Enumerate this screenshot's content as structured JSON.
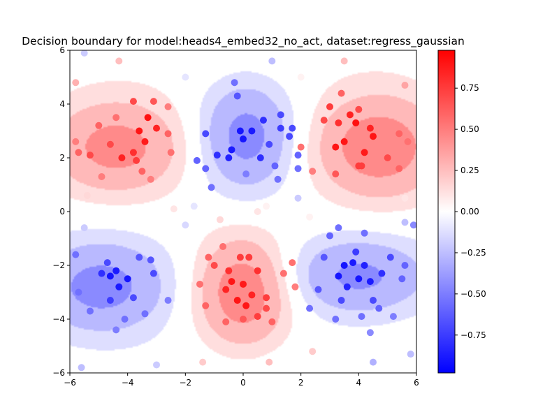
{
  "chart_data": {
    "type": "heatmap",
    "title": "Decision boundary for model:heads4_embed32_no_act, dataset:regress_gaussian",
    "xlabel": "",
    "ylabel": "",
    "xlim": [
      -6,
      6
    ],
    "ylim": [
      -6,
      6
    ],
    "x_ticks": [
      "−6",
      "−4",
      "−2",
      "0",
      "2",
      "4",
      "6"
    ],
    "y_ticks": [
      "−6",
      "−4",
      "−2",
      "0",
      "2",
      "4",
      "6"
    ],
    "x_tick_values": [
      -6,
      -4,
      -2,
      0,
      2,
      4,
      6
    ],
    "y_tick_values": [
      -6,
      -4,
      -2,
      0,
      2,
      4,
      6
    ],
    "grid": false,
    "colormap": "bwr",
    "colors": {
      "negative": "#0000ff",
      "zero": "#ffffff",
      "positive": "#ff0000"
    },
    "colorbar": {
      "range": [
        -0.98,
        0.98
      ],
      "ticks": [
        "−0.75",
        "−0.50",
        "−0.25",
        "0.00",
        "0.25",
        "0.50",
        "0.75"
      ],
      "tick_values": [
        -0.75,
        -0.5,
        -0.25,
        0.0,
        0.25,
        0.5,
        0.75
      ]
    },
    "contour_levels": [
      -0.75,
      -0.5,
      -0.25,
      -0.1,
      0.1,
      0.25,
      0.5,
      0.75
    ],
    "surface_description": "Approximately a sign pattern with alternating positive (red) and negative (blue) lobes: positive near (-4.3,2.3), (4.5,2.3), (0,-3); negative near (0,2.9), (-4.5,-2.6), (4,-2.5).",
    "points": [
      {
        "x": -4.2,
        "y": 2.0,
        "v": 0.85
      },
      {
        "x": -3.6,
        "y": 3.0,
        "v": 0.9
      },
      {
        "x": -3.3,
        "y": 3.5,
        "v": 0.92
      },
      {
        "x": -3.0,
        "y": 3.1,
        "v": 0.85
      },
      {
        "x": -3.4,
        "y": 2.6,
        "v": 0.88
      },
      {
        "x": -3.8,
        "y": 2.2,
        "v": 0.8
      },
      {
        "x": -4.6,
        "y": 2.5,
        "v": 0.7
      },
      {
        "x": -5.0,
        "y": 3.2,
        "v": 0.6
      },
      {
        "x": -5.3,
        "y": 2.1,
        "v": 0.7
      },
      {
        "x": -5.7,
        "y": 2.2,
        "v": 0.6
      },
      {
        "x": -4.9,
        "y": 1.3,
        "v": 0.5
      },
      {
        "x": -3.5,
        "y": 1.5,
        "v": 0.6
      },
      {
        "x": -3.2,
        "y": 1.2,
        "v": 0.5
      },
      {
        "x": -2.6,
        "y": 2.9,
        "v": 0.6
      },
      {
        "x": -2.5,
        "y": 2.2,
        "v": 0.55
      },
      {
        "x": -3.8,
        "y": 4.1,
        "v": 0.7
      },
      {
        "x": -3.1,
        "y": 4.1,
        "v": 0.65
      },
      {
        "x": -2.6,
        "y": 3.9,
        "v": 0.5
      },
      {
        "x": -4.4,
        "y": 3.5,
        "v": 0.55
      },
      {
        "x": -5.8,
        "y": 2.6,
        "v": 0.5
      },
      {
        "x": -3.7,
        "y": 1.9,
        "v": 0.75
      },
      {
        "x": 3.2,
        "y": 2.4,
        "v": 0.9
      },
      {
        "x": 3.5,
        "y": 2.6,
        "v": 0.9
      },
      {
        "x": 3.9,
        "y": 3.3,
        "v": 0.92
      },
      {
        "x": 4.2,
        "y": 2.2,
        "v": 0.88
      },
      {
        "x": 4.5,
        "y": 2.8,
        "v": 0.9
      },
      {
        "x": 3.7,
        "y": 3.6,
        "v": 0.85
      },
      {
        "x": 3.3,
        "y": 3.3,
        "v": 0.8
      },
      {
        "x": 3.0,
        "y": 3.9,
        "v": 0.75
      },
      {
        "x": 2.8,
        "y": 3.4,
        "v": 0.7
      },
      {
        "x": 4.0,
        "y": 1.7,
        "v": 0.75
      },
      {
        "x": 4.1,
        "y": 1.7,
        "v": 0.75
      },
      {
        "x": 5.4,
        "y": 2.9,
        "v": 0.6
      },
      {
        "x": 5.7,
        "y": 2.6,
        "v": 0.55
      },
      {
        "x": 3.4,
        "y": 4.4,
        "v": 0.6
      },
      {
        "x": 4.0,
        "y": 3.8,
        "v": 0.7
      },
      {
        "x": 2.4,
        "y": 1.5,
        "v": 0.5
      },
      {
        "x": 2.0,
        "y": 2.4,
        "v": 0.55
      },
      {
        "x": 5.0,
        "y": 2.0,
        "v": 0.7
      },
      {
        "x": 5.4,
        "y": 1.6,
        "v": 0.6
      },
      {
        "x": 4.4,
        "y": 3.1,
        "v": 0.85
      },
      {
        "x": 3.2,
        "y": 1.4,
        "v": 0.65
      },
      {
        "x": -0.6,
        "y": -2.9,
        "v": 0.85
      },
      {
        "x": -0.4,
        "y": -2.6,
        "v": 0.9
      },
      {
        "x": 0.0,
        "y": -2.7,
        "v": 0.88
      },
      {
        "x": -0.2,
        "y": -3.3,
        "v": 0.9
      },
      {
        "x": 0.3,
        "y": -3.1,
        "v": 0.85
      },
      {
        "x": 0.1,
        "y": -3.5,
        "v": 0.9
      },
      {
        "x": 0.5,
        "y": -2.2,
        "v": 0.8
      },
      {
        "x": -0.1,
        "y": -1.7,
        "v": 0.75
      },
      {
        "x": 0.2,
        "y": -1.7,
        "v": 0.75
      },
      {
        "x": -0.5,
        "y": -2.2,
        "v": 0.8
      },
      {
        "x": 0.8,
        "y": -3.2,
        "v": 0.75
      },
      {
        "x": 0.8,
        "y": -3.6,
        "v": 0.7
      },
      {
        "x": -1.2,
        "y": -1.7,
        "v": 0.6
      },
      {
        "x": -1.3,
        "y": -3.5,
        "v": 0.6
      },
      {
        "x": 1.4,
        "y": -2.3,
        "v": 0.55
      },
      {
        "x": 1.7,
        "y": -1.9,
        "v": 0.55
      },
      {
        "x": 0.0,
        "y": -4.0,
        "v": 0.65
      },
      {
        "x": -0.6,
        "y": -4.1,
        "v": 0.6
      },
      {
        "x": 1.0,
        "y": -4.1,
        "v": 0.6
      },
      {
        "x": -1.0,
        "y": -2.0,
        "v": 0.7
      },
      {
        "x": -0.7,
        "y": -1.3,
        "v": 0.55
      },
      {
        "x": 1.8,
        "y": -2.8,
        "v": 0.5
      },
      {
        "x": -1.5,
        "y": -2.7,
        "v": 0.55
      },
      {
        "x": 0.5,
        "y": -3.9,
        "v": 0.75
      },
      {
        "x": -0.1,
        "y": 3.0,
        "v": -0.9
      },
      {
        "x": -0.4,
        "y": 2.3,
        "v": -0.88
      },
      {
        "x": -0.5,
        "y": 2.0,
        "v": -0.85
      },
      {
        "x": -0.9,
        "y": 2.1,
        "v": -0.8
      },
      {
        "x": 0.3,
        "y": 3.0,
        "v": -0.88
      },
      {
        "x": 0.0,
        "y": 2.7,
        "v": -0.9
      },
      {
        "x": 0.7,
        "y": 3.4,
        "v": -0.8
      },
      {
        "x": 0.6,
        "y": 2.0,
        "v": -0.8
      },
      {
        "x": 1.3,
        "y": 3.1,
        "v": -0.75
      },
      {
        "x": 1.7,
        "y": 3.1,
        "v": -0.7
      },
      {
        "x": 1.6,
        "y": 2.8,
        "v": -0.7
      },
      {
        "x": -1.3,
        "y": 2.9,
        "v": -0.7
      },
      {
        "x": -1.6,
        "y": 1.9,
        "v": -0.6
      },
      {
        "x": 1.1,
        "y": 1.7,
        "v": -0.6
      },
      {
        "x": 1.2,
        "y": 1.2,
        "v": -0.55
      },
      {
        "x": 1.9,
        "y": 1.6,
        "v": -0.55
      },
      {
        "x": -0.2,
        "y": 4.3,
        "v": -0.65
      },
      {
        "x": 1.3,
        "y": 3.6,
        "v": -0.7
      },
      {
        "x": -1.3,
        "y": 1.6,
        "v": -0.6
      },
      {
        "x": 0.9,
        "y": 2.5,
        "v": -0.7
      },
      {
        "x": -1.1,
        "y": 0.9,
        "v": -0.55
      },
      {
        "x": 1.9,
        "y": 2.1,
        "v": -0.6
      },
      {
        "x": 0.1,
        "y": 1.4,
        "v": -0.5
      },
      {
        "x": -0.3,
        "y": 4.8,
        "v": -0.55
      },
      {
        "x": -4.6,
        "y": -2.4,
        "v": -0.9
      },
      {
        "x": -4.4,
        "y": -2.2,
        "v": -0.88
      },
      {
        "x": -4.0,
        "y": -2.5,
        "v": -0.9
      },
      {
        "x": -4.3,
        "y": -2.8,
        "v": -0.88
      },
      {
        "x": -4.9,
        "y": -2.3,
        "v": -0.8
      },
      {
        "x": -3.1,
        "y": -2.3,
        "v": -0.7
      },
      {
        "x": -3.2,
        "y": -1.8,
        "v": -0.65
      },
      {
        "x": -3.6,
        "y": -1.7,
        "v": -0.65
      },
      {
        "x": -5.8,
        "y": -1.6,
        "v": -0.55
      },
      {
        "x": -5.7,
        "y": -3.0,
        "v": -0.55
      },
      {
        "x": -5.3,
        "y": -3.7,
        "v": -0.55
      },
      {
        "x": -3.8,
        "y": -3.2,
        "v": -0.7
      },
      {
        "x": -4.1,
        "y": -4.0,
        "v": -0.55
      },
      {
        "x": -4.4,
        "y": -4.4,
        "v": -0.5
      },
      {
        "x": -4.6,
        "y": -3.3,
        "v": -0.75
      },
      {
        "x": -3.4,
        "y": -3.8,
        "v": -0.55
      },
      {
        "x": -2.6,
        "y": -3.3,
        "v": -0.5
      },
      {
        "x": -4.7,
        "y": -1.9,
        "v": -0.7
      },
      {
        "x": 3.5,
        "y": -2.0,
        "v": -0.9
      },
      {
        "x": 3.3,
        "y": -2.4,
        "v": -0.9
      },
      {
        "x": 3.8,
        "y": -1.9,
        "v": -0.88
      },
      {
        "x": 4.0,
        "y": -2.5,
        "v": -0.9
      },
      {
        "x": 4.4,
        "y": -2.6,
        "v": -0.88
      },
      {
        "x": 3.6,
        "y": -2.8,
        "v": -0.85
      },
      {
        "x": 4.8,
        "y": -2.3,
        "v": -0.8
      },
      {
        "x": 4.2,
        "y": -2.0,
        "v": -0.85
      },
      {
        "x": 3.9,
        "y": -1.5,
        "v": -0.75
      },
      {
        "x": 2.8,
        "y": -1.7,
        "v": -0.65
      },
      {
        "x": 2.6,
        "y": -2.9,
        "v": -0.65
      },
      {
        "x": 3.4,
        "y": -3.3,
        "v": -0.7
      },
      {
        "x": 4.5,
        "y": -3.3,
        "v": -0.7
      },
      {
        "x": 5.1,
        "y": -1.7,
        "v": -0.7
      },
      {
        "x": 5.6,
        "y": -2.0,
        "v": -0.6
      },
      {
        "x": 5.5,
        "y": -2.5,
        "v": -0.6
      },
      {
        "x": 3.0,
        "y": -0.9,
        "v": -0.6
      },
      {
        "x": 3.3,
        "y": -0.6,
        "v": -0.55
      },
      {
        "x": 4.2,
        "y": -0.8,
        "v": -0.55
      },
      {
        "x": 2.3,
        "y": -3.6,
        "v": -0.55
      },
      {
        "x": 3.2,
        "y": -4.0,
        "v": -0.55
      },
      {
        "x": 4.1,
        "y": -3.9,
        "v": -0.55
      },
      {
        "x": 4.7,
        "y": -3.6,
        "v": -0.6
      },
      {
        "x": 5.2,
        "y": -3.9,
        "v": -0.5
      },
      {
        "x": 4.4,
        "y": -4.5,
        "v": -0.45
      },
      {
        "x": 5.9,
        "y": -0.5,
        "v": -0.45
      },
      {
        "x": -2.4,
        "y": 0.1,
        "v": 0.1
      },
      {
        "x": -2.0,
        "y": -0.5,
        "v": -0.15
      },
      {
        "x": 1.9,
        "y": 0.5,
        "v": -0.2
      },
      {
        "x": 2.3,
        "y": -0.2,
        "v": 0.05
      },
      {
        "x": -1.7,
        "y": 0.2,
        "v": -0.1
      },
      {
        "x": 0.8,
        "y": 0.2,
        "v": 0.05
      },
      {
        "x": -0.8,
        "y": -0.3,
        "v": 0.15
      },
      {
        "x": 0.5,
        "y": 0.0,
        "v": 0.1
      },
      {
        "x": -5.5,
        "y": 5.9,
        "v": -0.2
      },
      {
        "x": -4.3,
        "y": 5.6,
        "v": 0.25
      },
      {
        "x": 1.0,
        "y": 5.6,
        "v": -0.25
      },
      {
        "x": 3.5,
        "y": 5.6,
        "v": 0.25
      },
      {
        "x": 5.6,
        "y": 4.7,
        "v": 0.35
      },
      {
        "x": -5.8,
        "y": 4.8,
        "v": 0.3
      },
      {
        "x": -2.0,
        "y": 5.0,
        "v": -0.1
      },
      {
        "x": 2.0,
        "y": 5.0,
        "v": 0.05
      },
      {
        "x": -5.6,
        "y": -5.8,
        "v": -0.25
      },
      {
        "x": -3.0,
        "y": -5.7,
        "v": -0.2
      },
      {
        "x": -1.4,
        "y": -5.6,
        "v": 0.2
      },
      {
        "x": 0.9,
        "y": -5.6,
        "v": 0.25
      },
      {
        "x": 2.4,
        "y": -5.2,
        "v": 0.2
      },
      {
        "x": 4.5,
        "y": -5.6,
        "v": -0.3
      },
      {
        "x": 5.8,
        "y": -5.3,
        "v": -0.25
      },
      {
        "x": -5.4,
        "y": 0.6,
        "v": 0.15
      },
      {
        "x": 5.6,
        "y": 0.5,
        "v": 0.1
      },
      {
        "x": -5.5,
        "y": -0.6,
        "v": -0.2
      },
      {
        "x": 5.6,
        "y": -0.4,
        "v": -0.25
      }
    ]
  }
}
